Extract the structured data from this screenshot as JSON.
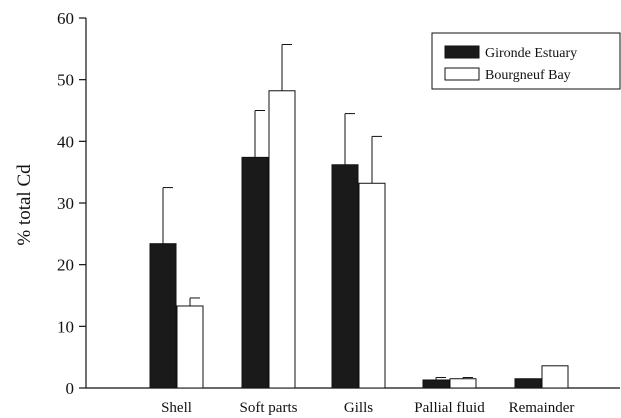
{
  "chart_data": {
    "type": "bar",
    "title": "",
    "xlabel": "",
    "ylabel": "% total Cd",
    "ylim": [
      0,
      60
    ],
    "yticks": [
      0,
      10,
      20,
      30,
      40,
      50,
      60
    ],
    "grid": false,
    "legend_position": "top-right",
    "categories": [
      "Shell",
      "Soft parts",
      "Gills",
      "Pallial fluid",
      "Remainder"
    ],
    "series": [
      {
        "name": "Gironde Estuary",
        "color": "#1a1a1a",
        "values": [
          23.4,
          37.4,
          36.2,
          1.3,
          1.5
        ],
        "errors": [
          9.1,
          7.6,
          8.3,
          0.4,
          0.0
        ]
      },
      {
        "name": "Bourgneuf Bay",
        "color": "#ffffff",
        "values": [
          13.3,
          48.2,
          33.2,
          1.5,
          3.6
        ],
        "errors": [
          1.3,
          7.5,
          7.6,
          0.2,
          0.0
        ]
      }
    ]
  }
}
